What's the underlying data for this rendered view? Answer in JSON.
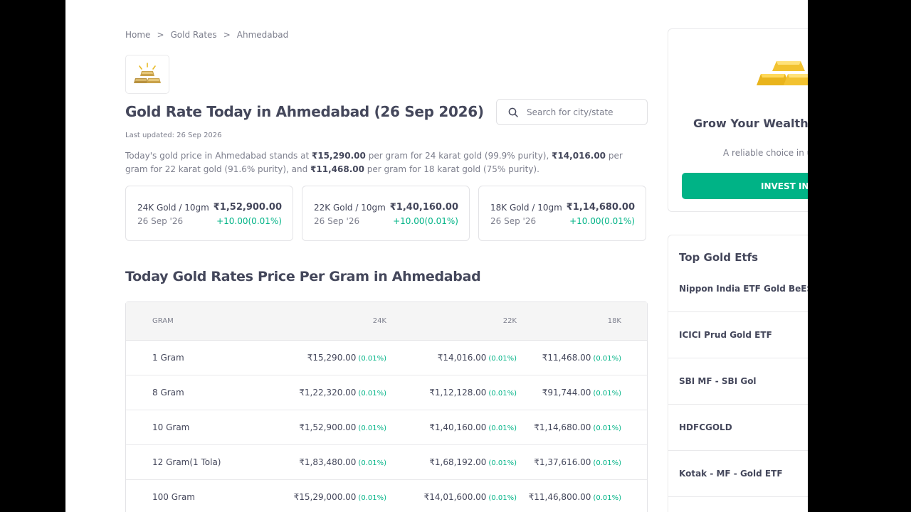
{
  "breadcrumb": {
    "items": [
      "Home",
      "Gold Rates",
      "Ahmedabad"
    ],
    "separator": ">"
  },
  "header": {
    "title": "Gold Rate Today in Ahmedabad (26 Sep 2026)",
    "last_updated": "Last updated: 26 Sep 2026",
    "search_placeholder": "Search for city/state"
  },
  "description": {
    "p1": "Today's gold price in Ahmedabad stands at ",
    "v1": "₹15,290.00",
    "p2": " per gram for 24 karat gold (99.9% purity), ",
    "v2": "₹14,016.00",
    "p3": " per gram for 22 karat gold (91.6% purity), and ",
    "v3": "₹11,468.00",
    "p4": " per gram for 18 karat gold (75% purity)."
  },
  "cards": [
    {
      "label": "24K Gold / 10gm",
      "date": "26 Sep '26",
      "price": "₹1,52,900.00",
      "change": "+10.00(0.01%)"
    },
    {
      "label": "22K Gold / 10gm",
      "date": "26 Sep '26",
      "price": "₹1,40,160.00",
      "change": "+10.00(0.01%)"
    },
    {
      "label": "18K Gold / 10gm",
      "date": "26 Sep '26",
      "price": "₹1,14,680.00",
      "change": "+10.00(0.01%)"
    }
  ],
  "section": {
    "title": "Today Gold Rates Price Per Gram in Ahmedabad"
  },
  "table": {
    "headers": [
      "GRAM",
      "24K",
      "22K",
      "18K"
    ],
    "rows": [
      {
        "gram": "1 Gram",
        "k24": "₹15,290.00",
        "k24p": "(0.01%)",
        "k22": "₹14,016.00",
        "k22p": "(0.01%)",
        "k18": "₹11,468.00",
        "k18p": "(0.01%)"
      },
      {
        "gram": "8 Gram",
        "k24": "₹1,22,320.00",
        "k24p": "(0.01%)",
        "k22": "₹1,12,128.00",
        "k22p": "(0.01%)",
        "k18": "₹91,744.00",
        "k18p": "(0.01%)"
      },
      {
        "gram": "10 Gram",
        "k24": "₹1,52,900.00",
        "k24p": "(0.01%)",
        "k22": "₹1,40,160.00",
        "k22p": "(0.01%)",
        "k18": "₹1,14,680.00",
        "k18p": "(0.01%)"
      },
      {
        "gram": "12 Gram(1 Tola)",
        "k24": "₹1,83,480.00",
        "k24p": "(0.01%)",
        "k22": "₹1,68,192.00",
        "k22p": "(0.01%)",
        "k18": "₹1,37,616.00",
        "k18p": "(0.01%)"
      },
      {
        "gram": "100 Gram",
        "k24": "₹15,29,000.00",
        "k24p": "(0.01%)",
        "k22": "₹14,01,600.00",
        "k22p": "(0.01%)",
        "k18": "₹11,46,800.00",
        "k18p": "(0.01%)"
      }
    ]
  },
  "promo": {
    "title": "Grow Your Wealth w",
    "subtitle": "A reliable choice in ur",
    "button": "INVEST IN G"
  },
  "etfs": {
    "title": "Top Gold Etfs",
    "items": [
      "Nippon India ETF Gold BeES",
      "ICICI Prud Gold ETF",
      "SBI MF - SBI Gol",
      "HDFCGOLD",
      "Kotak - MF - Gold ETF"
    ]
  },
  "colors": {
    "accent": "#00b386",
    "text": "#44475b",
    "muted": "#7c7e8c",
    "gold": "#e8b923"
  }
}
